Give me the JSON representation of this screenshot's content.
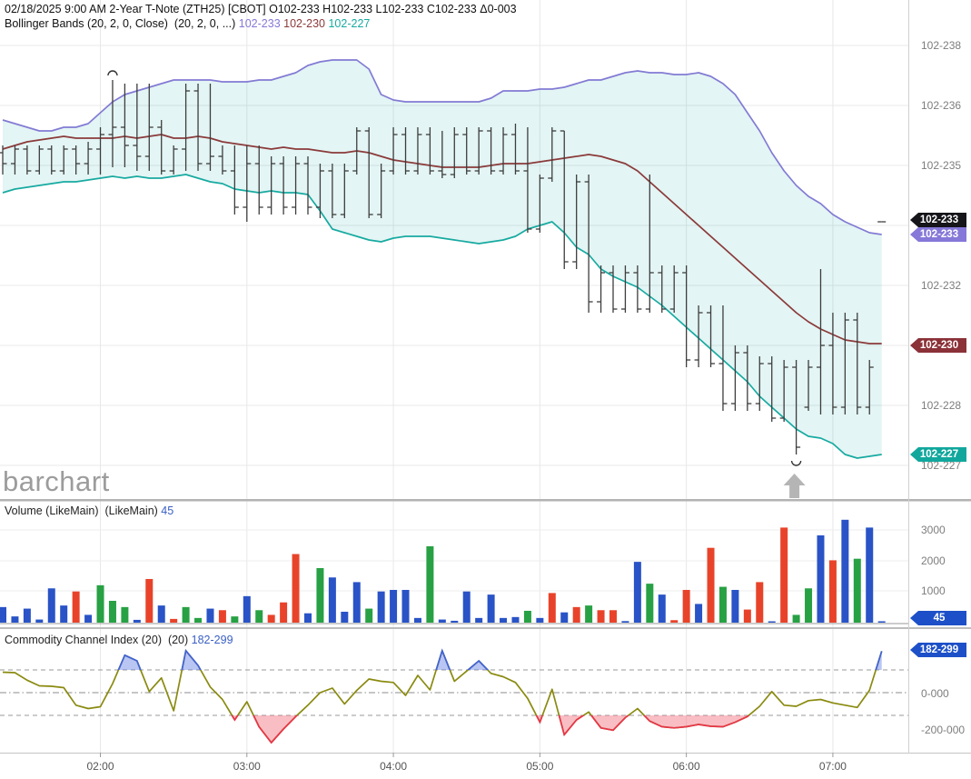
{
  "header": {
    "line1": "02/18/2025 9:00 AM 2-Year T-Note (ZTH25) [CBOT] O102-233 H102-233 L102-233 C102-233 Δ0-003",
    "indicator_label": "Bollinger Bands (20, 2, 0, Close)  (20, 2, 0, ...) ",
    "bb_upper_value": "102-233",
    "bb_middle_value": "102-230",
    "bb_lower_value": "102-227"
  },
  "watermark": "barchart",
  "price_panel": {
    "axis_ticks": [
      {
        "y": 50,
        "label": "102-238"
      },
      {
        "y": 116,
        "label": "102-236"
      },
      {
        "y": 182,
        "label": "102-235"
      },
      {
        "y": 248,
        "label": ""
      },
      {
        "y": 314,
        "label": "102-232"
      },
      {
        "y": 380,
        "label": ""
      },
      {
        "y": 446,
        "label": "102-228"
      },
      {
        "y": 512,
        "label": "102-227"
      }
    ],
    "badges": [
      {
        "y": 242,
        "label": "102-233",
        "color": "badge_black"
      },
      {
        "y": 258,
        "label": "102-233",
        "color": "badge_purple"
      },
      {
        "y": 380,
        "label": "102-230",
        "color": "badge_maroon"
      },
      {
        "y": 500,
        "label": "102-227",
        "color": "badge_teal"
      }
    ]
  },
  "volume_panel": {
    "label": "Volume (LikeMain)  (LikeMain) ",
    "last_value": "45",
    "axis_ticks": [
      {
        "y": 583,
        "label": "3000"
      },
      {
        "y": 617,
        "label": "2000"
      },
      {
        "y": 650,
        "label": "1000"
      }
    ],
    "badge": {
      "y": 680,
      "label": "45",
      "color": "badge_blue"
    }
  },
  "cci_panel": {
    "label": "Commodity Channel Index (20)  (20) ",
    "last_value": "182-299",
    "axis_ticks": [
      {
        "y": 763,
        "label": "0-000"
      },
      {
        "y": 803,
        "label": "-200-000"
      }
    ],
    "badge": {
      "y": 715,
      "label": "182-299",
      "color": "badge_blue"
    }
  },
  "x_axis": {
    "hours": [
      {
        "label": "02:00",
        "bar": 8
      },
      {
        "label": "03:00",
        "bar": 20
      },
      {
        "label": "04:00",
        "bar": 32
      },
      {
        "label": "05:00",
        "bar": 44
      },
      {
        "label": "06:00",
        "bar": 56
      },
      {
        "label": "07:00",
        "bar": 68
      }
    ]
  },
  "chart_data": [
    {
      "type": "ohlc",
      "title": "2-Year T-Note (ZTH25) 5-minute bars with Bollinger Bands (20,2)",
      "price_unit": "display value v means 102-v in tenths of a 32nd (e.g. 233 = 102-233)",
      "ylim_display": [
        "102-227",
        "102-238"
      ],
      "bars_ohlc": [
        [
          235.3,
          235.5,
          234.7,
          235.0
        ],
        [
          235.0,
          235.5,
          234.7,
          235.4
        ],
        [
          235.4,
          235.5,
          234.7,
          234.8
        ],
        [
          234.8,
          235.5,
          234.7,
          235.4
        ],
        [
          235.4,
          235.5,
          234.7,
          234.8
        ],
        [
          234.8,
          235.5,
          234.7,
          235.4
        ],
        [
          235.4,
          235.5,
          234.7,
          235.0
        ],
        [
          235.0,
          235.6,
          234.7,
          235.4
        ],
        [
          235.4,
          236.0,
          234.7,
          235.8
        ],
        [
          235.8,
          237.3,
          234.9,
          236.0
        ],
        [
          236.0,
          237.2,
          234.9,
          235.5
        ],
        [
          235.5,
          237.2,
          234.8,
          235.2
        ],
        [
          235.2,
          237.2,
          234.8,
          236.0
        ],
        [
          236.0,
          236.2,
          234.7,
          234.8
        ],
        [
          234.8,
          235.5,
          234.7,
          235.4
        ],
        [
          235.4,
          237.2,
          234.8,
          237.0
        ],
        [
          237.0,
          237.2,
          234.8,
          235.0
        ],
        [
          235.0,
          237.2,
          234.8,
          235.2
        ],
        [
          235.2,
          235.5,
          234.7,
          234.8
        ],
        [
          234.8,
          235.5,
          233.6,
          233.8
        ],
        [
          233.8,
          235.5,
          233.4,
          235.0
        ],
        [
          235.0,
          235.5,
          233.6,
          233.8
        ],
        [
          233.8,
          235.2,
          233.6,
          235.0
        ],
        [
          235.0,
          235.2,
          233.6,
          233.8
        ],
        [
          233.8,
          235.2,
          233.6,
          235.0
        ],
        [
          235.0,
          235.2,
          233.6,
          233.8
        ],
        [
          233.8,
          235.0,
          233.5,
          234.8
        ],
        [
          234.8,
          235.0,
          233.5,
          233.6
        ],
        [
          233.6,
          235.0,
          233.5,
          234.8
        ],
        [
          234.8,
          236.0,
          234.7,
          235.9
        ],
        [
          235.9,
          236.0,
          233.5,
          233.6
        ],
        [
          233.6,
          235.0,
          233.5,
          234.8
        ],
        [
          234.8,
          236.0,
          234.7,
          235.8
        ],
        [
          235.8,
          236.0,
          234.7,
          234.8
        ],
        [
          234.8,
          236.0,
          234.7,
          235.8
        ],
        [
          235.8,
          236.0,
          234.7,
          234.8
        ],
        [
          234.8,
          235.9,
          234.6,
          234.7
        ],
        [
          234.7,
          236.0,
          234.6,
          235.8
        ],
        [
          235.8,
          236.0,
          234.7,
          234.8
        ],
        [
          234.8,
          236.0,
          234.7,
          235.9
        ],
        [
          235.9,
          236.0,
          234.7,
          234.8
        ],
        [
          234.8,
          236.0,
          234.7,
          235.8
        ],
        [
          235.8,
          236.1,
          234.7,
          234.8
        ],
        [
          234.8,
          236.0,
          233.1,
          233.2
        ],
        [
          233.2,
          234.7,
          233.1,
          234.6
        ],
        [
          234.6,
          236.0,
          234.5,
          235.9
        ],
        [
          235.9,
          235.9,
          232.1,
          232.3
        ],
        [
          232.3,
          234.7,
          232.1,
          234.5
        ],
        [
          234.5,
          234.7,
          230.9,
          231.2
        ],
        [
          231.2,
          232.2,
          230.9,
          232.0
        ],
        [
          232.0,
          232.2,
          230.9,
          231.0
        ],
        [
          231.0,
          232.2,
          230.9,
          232.0
        ],
        [
          232.0,
          232.2,
          230.9,
          231.0
        ],
        [
          231.0,
          234.7,
          230.9,
          232.0
        ],
        [
          232.0,
          232.2,
          230.9,
          231.0
        ],
        [
          231.0,
          232.2,
          230.9,
          232.0
        ],
        [
          232.0,
          232.2,
          229.4,
          229.6
        ],
        [
          229.6,
          231.1,
          229.4,
          230.9
        ],
        [
          230.9,
          231.1,
          229.4,
          229.5
        ],
        [
          229.5,
          231.1,
          228.2,
          228.4
        ],
        [
          228.4,
          230.0,
          228.2,
          229.8
        ],
        [
          229.8,
          230.0,
          228.2,
          228.4
        ],
        [
          228.4,
          229.7,
          228.2,
          229.5
        ],
        [
          229.5,
          229.7,
          227.9,
          228.0
        ],
        [
          228.0,
          229.6,
          227.9,
          229.4
        ],
        [
          229.4,
          229.6,
          227.0,
          227.2
        ],
        [
          228.3,
          229.6,
          228.2,
          229.4
        ],
        [
          229.4,
          232.1,
          228.1,
          230.0
        ],
        [
          230.0,
          230.9,
          228.1,
          228.3
        ],
        [
          228.3,
          230.9,
          228.1,
          230.7
        ],
        [
          230.7,
          230.9,
          228.1,
          228.3
        ],
        [
          228.3,
          229.6,
          228.1,
          229.4
        ],
        [
          233.4,
          233.4,
          233.4,
          233.4
        ]
      ],
      "bollinger_upper": [
        236.2,
        236.1,
        236.0,
        235.9,
        235.9,
        236.0,
        236.0,
        236.1,
        236.4,
        236.7,
        236.9,
        237.0,
        237.1,
        237.2,
        237.3,
        237.3,
        237.3,
        237.3,
        237.25,
        237.25,
        237.25,
        237.3,
        237.3,
        237.4,
        237.5,
        237.7,
        237.8,
        237.85,
        237.85,
        237.85,
        237.6,
        236.9,
        236.75,
        236.7,
        236.7,
        236.7,
        236.7,
        236.7,
        236.7,
        236.7,
        236.8,
        237.0,
        237.0,
        237.0,
        237.05,
        237.05,
        237.1,
        237.2,
        237.3,
        237.3,
        237.4,
        237.5,
        237.55,
        237.5,
        237.5,
        237.45,
        237.45,
        237.5,
        237.4,
        237.2,
        236.9,
        236.4,
        235.9,
        235.3,
        234.8,
        234.4,
        234.1,
        233.9,
        233.6,
        233.4,
        233.25,
        233.1,
        233.05
      ],
      "bollinger_middle": [
        235.4,
        235.5,
        235.6,
        235.65,
        235.7,
        235.75,
        235.7,
        235.7,
        235.7,
        235.7,
        235.75,
        235.7,
        235.75,
        235.8,
        235.7,
        235.7,
        235.75,
        235.7,
        235.6,
        235.55,
        235.5,
        235.45,
        235.4,
        235.45,
        235.4,
        235.4,
        235.35,
        235.3,
        235.3,
        235.35,
        235.3,
        235.2,
        235.1,
        235.05,
        235.0,
        234.95,
        234.9,
        234.9,
        234.9,
        234.9,
        234.95,
        235.0,
        235.0,
        235.0,
        235.05,
        235.1,
        235.15,
        235.2,
        235.25,
        235.2,
        235.1,
        235.0,
        234.8,
        234.5,
        234.2,
        233.9,
        233.6,
        233.3,
        233.0,
        232.7,
        232.4,
        232.1,
        231.8,
        231.5,
        231.2,
        230.9,
        230.65,
        230.45,
        230.3,
        230.15,
        230.1,
        230.05,
        230.05
      ],
      "bollinger_lower": [
        234.2,
        234.3,
        234.35,
        234.4,
        234.45,
        234.5,
        234.5,
        234.55,
        234.6,
        234.65,
        234.6,
        234.65,
        234.6,
        234.6,
        234.65,
        234.7,
        234.6,
        234.5,
        234.45,
        234.3,
        234.25,
        234.2,
        234.25,
        234.2,
        234.2,
        234.15,
        233.7,
        233.2,
        233.1,
        233.0,
        232.9,
        232.85,
        232.95,
        233.0,
        233.0,
        233.0,
        232.95,
        232.9,
        232.85,
        232.8,
        232.85,
        232.9,
        233.0,
        233.2,
        233.3,
        233.4,
        233.1,
        232.7,
        232.5,
        232.1,
        231.9,
        231.75,
        231.6,
        231.35,
        231.1,
        230.8,
        230.5,
        230.2,
        229.9,
        229.6,
        229.3,
        229.0,
        228.6,
        228.3,
        228.0,
        227.7,
        227.5,
        227.45,
        227.3,
        227.0,
        226.9,
        226.95,
        227.0
      ],
      "high_marker_bar": 9,
      "low_marker_bar": 65
    },
    {
      "type": "bar",
      "title": "Volume (LikeMain)",
      "ylim": [
        0,
        3500
      ],
      "values": [
        500,
        200,
        450,
        100,
        1100,
        550,
        1000,
        250,
        1200,
        700,
        500,
        90,
        1400,
        550,
        120,
        500,
        150,
        450,
        400,
        200,
        850,
        400,
        250,
        650,
        2200,
        300,
        1750,
        1450,
        350,
        1300,
        450,
        1000,
        1050,
        1050,
        150,
        2450,
        100,
        60,
        1000,
        150,
        900,
        150,
        180,
        380,
        150,
        950,
        330,
        500,
        550,
        400,
        400,
        50,
        1950,
        1250,
        900,
        80,
        1050,
        600,
        2400,
        1150,
        1050,
        420,
        1300,
        20,
        3050,
        250,
        1100,
        2800,
        2000,
        3300,
        2050,
        3050,
        45
      ],
      "bar_colors": [
        "N",
        "N",
        "N",
        "N",
        "N",
        "N",
        "D",
        "N",
        "U",
        "U",
        "U",
        "N",
        "D",
        "N",
        "D",
        "U",
        "U",
        "N",
        "D",
        "U",
        "N",
        "U",
        "D",
        "D",
        "D",
        "N",
        "U",
        "N",
        "N",
        "N",
        "U",
        "N",
        "N",
        "N",
        "N",
        "U",
        "N",
        "N",
        "N",
        "N",
        "N",
        "N",
        "N",
        "U",
        "N",
        "D",
        "N",
        "D",
        "U",
        "D",
        "D",
        "N",
        "N",
        "U",
        "N",
        "D",
        "D",
        "N",
        "D",
        "U",
        "N",
        "D",
        "D",
        "N",
        "D",
        "U",
        "U",
        "N",
        "D",
        "N",
        "U",
        "N",
        "N"
      ],
      "last_value": 45
    },
    {
      "type": "line",
      "title": "Commodity Channel Index (20)",
      "ref_lines": [
        100,
        0,
        -100
      ],
      "ylim": [
        -250,
        250
      ],
      "last_value": 182.299,
      "values": [
        90,
        88,
        55,
        30,
        28,
        22,
        -55,
        -70,
        -62,
        40,
        165,
        140,
        5,
        65,
        -80,
        185,
        120,
        25,
        -30,
        -120,
        -40,
        -150,
        -220,
        -160,
        -105,
        -55,
        0,
        20,
        -50,
        10,
        60,
        50,
        45,
        -12,
        76,
        12,
        185,
        50,
        95,
        140,
        85,
        70,
        45,
        -25,
        -130,
        15,
        -185,
        -120,
        -85,
        -155,
        -165,
        -110,
        -70,
        -125,
        -150,
        -155,
        -150,
        -140,
        -148,
        -150,
        -130,
        -105,
        -60,
        5,
        -55,
        -60,
        -35,
        -30,
        -45,
        -55,
        -65,
        10,
        182.299
      ]
    }
  ],
  "colors": {
    "bb_upper": "#837bd4",
    "bb_middle": "#8b3a3a",
    "bb_lower": "#17aaa1",
    "band_fill": "rgba(23,170,161,0.12)",
    "price_bar": "#3d3d3d",
    "vol_up": "#27a144",
    "vol_down": "#e8432a",
    "vol_neutral": "#2953c6",
    "cci_line": "#8a8a10",
    "cci_high": "#4063d8",
    "cci_high_fill": "rgba(80,110,225,0.40)",
    "cci_low": "#e8354a",
    "cci_low_fill": "rgba(242,110,125,0.45)",
    "badge_black": "#15151a",
    "badge_purple": "#8678d8",
    "badge_maroon": "#8b3138",
    "badge_teal": "#12a79d",
    "badge_blue": "#1d50c8",
    "header_value_blue": "#3a5fc4",
    "grid": "#e8e8e8",
    "axis_text": "#7d7d7d",
    "separator": "#b3b3b3",
    "arrow": "#b5b5b5",
    "watermark": "#9c9c9c"
  }
}
